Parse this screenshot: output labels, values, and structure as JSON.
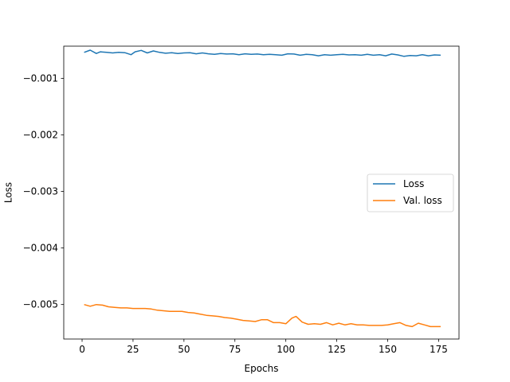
{
  "chart_data": {
    "type": "line",
    "title": "",
    "xlabel": "Epochs",
    "ylabel": "Loss",
    "xlim": [
      -9,
      185
    ],
    "ylim": [
      -0.00561,
      -0.00043
    ],
    "xticks": [
      0,
      25,
      50,
      75,
      100,
      125,
      150,
      175
    ],
    "xtick_labels": [
      "0",
      "25",
      "50",
      "75",
      "100",
      "125",
      "150",
      "175"
    ],
    "yticks": [
      -0.001,
      -0.002,
      -0.003,
      -0.004,
      -0.005
    ],
    "ytick_labels": [
      "−0.001",
      "−0.002",
      "−0.003",
      "−0.004",
      "−0.005"
    ],
    "legend_position": "center-right",
    "grid": false,
    "series": [
      {
        "name": "Loss",
        "color": "#1f77b4",
        "x": [
          1,
          4,
          7,
          9,
          12,
          15,
          18,
          21,
          24,
          26,
          29,
          32,
          35,
          38,
          41,
          44,
          47,
          50,
          53,
          56,
          59,
          62,
          65,
          68,
          71,
          74,
          77,
          80,
          83,
          86,
          89,
          92,
          95,
          98,
          101,
          104,
          107,
          110,
          113,
          116,
          119,
          122,
          125,
          128,
          131,
          134,
          137,
          140,
          143,
          146,
          149,
          152,
          155,
          158,
          161,
          164,
          167,
          170,
          173,
          176
        ],
        "values": [
          -0.00054,
          -0.0005,
          -0.00056,
          -0.00053,
          -0.00054,
          -0.00055,
          -0.00054,
          -0.000545,
          -0.00058,
          -0.00053,
          -0.000505,
          -0.00055,
          -0.000515,
          -0.00054,
          -0.000555,
          -0.000545,
          -0.00056,
          -0.00055,
          -0.000545,
          -0.000565,
          -0.00055,
          -0.000565,
          -0.000575,
          -0.00056,
          -0.00057,
          -0.000565,
          -0.00058,
          -0.000565,
          -0.000575,
          -0.00057,
          -0.00058,
          -0.000575,
          -0.00058,
          -0.00059,
          -0.000565,
          -0.00057,
          -0.00059,
          -0.000575,
          -0.00058,
          -0.0006,
          -0.00058,
          -0.00059,
          -0.00058,
          -0.000575,
          -0.000585,
          -0.00058,
          -0.00059,
          -0.000575,
          -0.00059,
          -0.00058,
          -0.0006,
          -0.00057,
          -0.000585,
          -0.00061,
          -0.000595,
          -0.0006,
          -0.00058,
          -0.0006,
          -0.000585,
          -0.00059
        ]
      },
      {
        "name": "Val. loss",
        "color": "#ff7f0e",
        "x": [
          1,
          4,
          7,
          10,
          13,
          16,
          19,
          22,
          25,
          28,
          31,
          34,
          37,
          40,
          43,
          46,
          49,
          52,
          55,
          58,
          61,
          64,
          67,
          70,
          73,
          76,
          79,
          82,
          85,
          88,
          91,
          94,
          97,
          100,
          103,
          105,
          108,
          111,
          114,
          117,
          120,
          123,
          126,
          129,
          132,
          135,
          138,
          141,
          144,
          147,
          150,
          153,
          156,
          159,
          162,
          165,
          168,
          171,
          174,
          176
        ],
        "values": [
          -0.005,
          -0.00503,
          -0.005,
          -0.00501,
          -0.00504,
          -0.00505,
          -0.00506,
          -0.00506,
          -0.00507,
          -0.00507,
          -0.00507,
          -0.00508,
          -0.0051,
          -0.00511,
          -0.00512,
          -0.00512,
          -0.00512,
          -0.00514,
          -0.00515,
          -0.00517,
          -0.00519,
          -0.0052,
          -0.00521,
          -0.00523,
          -0.00524,
          -0.00526,
          -0.00528,
          -0.00529,
          -0.0053,
          -0.00527,
          -0.00527,
          -0.00532,
          -0.00532,
          -0.00534,
          -0.00524,
          -0.00521,
          -0.00531,
          -0.00535,
          -0.00534,
          -0.00535,
          -0.00532,
          -0.00536,
          -0.00533,
          -0.00536,
          -0.00534,
          -0.00536,
          -0.00536,
          -0.00537,
          -0.00537,
          -0.00537,
          -0.00536,
          -0.00534,
          -0.00532,
          -0.00537,
          -0.00539,
          -0.00533,
          -0.00536,
          -0.00539,
          -0.00539,
          -0.00539
        ]
      }
    ]
  }
}
